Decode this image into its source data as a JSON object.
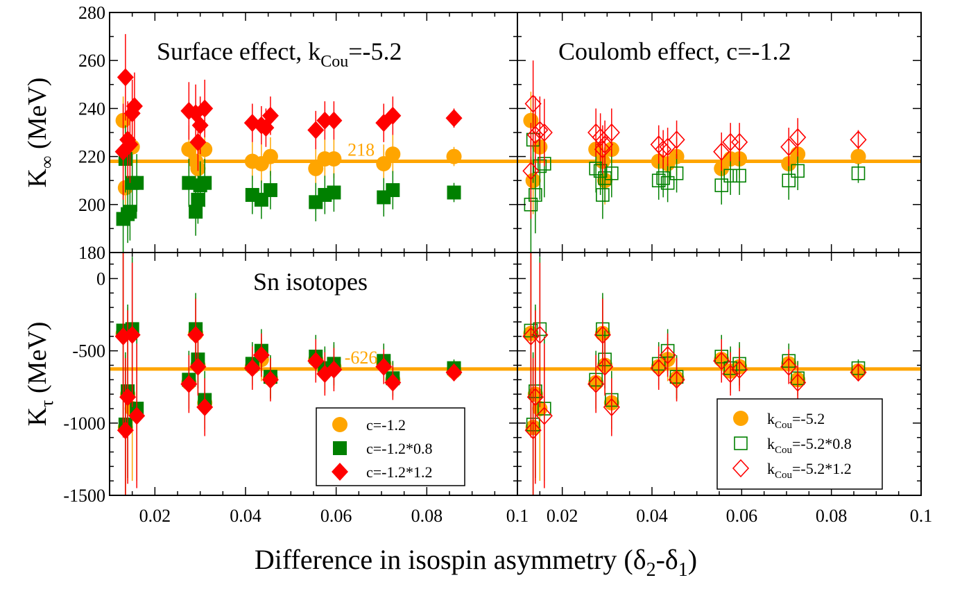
{
  "chart_data": {
    "type": "scatter",
    "xlabel_main": "Difference in isospin asymmetry (δ",
    "xlabel_sub2": "2",
    "xlabel_dash": "-δ",
    "xlabel_sub1": "1",
    "xlabel_close": ")",
    "xlim": [
      0.01,
      0.1
    ],
    "xticks": [
      "0.02",
      "0.04",
      "0.06",
      "0.08",
      "0.1"
    ],
    "colors": {
      "orange": "#ffa500",
      "green": "#008000",
      "red": "#ff0000",
      "line": "#ffa500"
    },
    "panels": [
      {
        "id": "top-left",
        "annotation": {
          "main": "Surface effect, k",
          "sub": "Cou",
          "tail": "=-5.2"
        },
        "ylabel": {
          "main": "K",
          "sub": "∞",
          "tail": " (MeV)"
        },
        "ylim": [
          180,
          280
        ],
        "yticks": [
          "180",
          "200",
          "220",
          "240",
          "260",
          "280"
        ],
        "reference": {
          "value": 218,
          "label": "218"
        },
        "series": [
          {
            "name": "c=-1.2",
            "marker": "circle-filled",
            "color": "orange",
            "x": [
              0.013,
              0.0135,
              0.015,
              0.0275,
              0.029,
              0.0295,
              0.031,
              0.0415,
              0.0435,
              0.0455,
              0.0555,
              0.0575,
              0.0595,
              0.0705,
              0.0725,
              0.086
            ],
            "y": [
              235,
              207,
              224,
              223,
              218,
              215,
              223,
              218,
              217,
              220,
              215,
              219,
              219,
              217,
              221,
              220
            ],
            "err": [
              10,
              12,
              12,
              10,
              10,
              10,
              10,
              8,
              8,
              8,
              8,
              8,
              8,
              8,
              8,
              4
            ]
          },
          {
            "name": "c=-1.2*0.8",
            "marker": "square-filled",
            "color": "green",
            "x": [
              0.013,
              0.0135,
              0.014,
              0.0145,
              0.015,
              0.016,
              0.0275,
              0.029,
              0.0295,
              0.03,
              0.031,
              0.0415,
              0.0435,
              0.0455,
              0.0555,
              0.0575,
              0.0595,
              0.0705,
              0.0725,
              0.086
            ],
            "y": [
              194,
              219,
              196,
              197,
              209,
              209,
              209,
              197,
              202,
              208,
              209,
              204,
              202,
              206,
              201,
              204,
              205,
              203,
              206,
              205
            ],
            "err": [
              14,
              14,
              12,
              12,
              12,
              12,
              10,
              10,
              10,
              10,
              10,
              8,
              8,
              8,
              8,
              8,
              8,
              8,
              8,
              4
            ]
          },
          {
            "name": "c=-1.2*1.2",
            "marker": "diamond-filled",
            "color": "red",
            "x": [
              0.013,
              0.0135,
              0.014,
              0.0145,
              0.015,
              0.0155,
              0.0275,
              0.029,
              0.0295,
              0.03,
              0.031,
              0.0415,
              0.0435,
              0.0445,
              0.0455,
              0.0555,
              0.0575,
              0.0595,
              0.0705,
              0.0725,
              0.086
            ],
            "y": [
              222,
              253,
              227,
              225,
              238,
              241,
              239,
              238,
              226,
              233,
              240,
              234,
              233,
              232,
              237,
              231,
              235,
              235,
              234,
              237,
              236
            ],
            "err": [
              20,
              18,
              16,
              16,
              14,
              14,
              12,
              12,
              12,
              12,
              12,
              8,
              8,
              8,
              8,
              8,
              8,
              8,
              8,
              8,
              4
            ]
          }
        ]
      },
      {
        "id": "top-right",
        "annotation": {
          "main": "Coulomb effect, c=-1.2",
          "sub": "",
          "tail": ""
        },
        "ylabel": null,
        "ylim": [
          180,
          280
        ],
        "yticks": [],
        "reference": {
          "value": 218,
          "label": ""
        },
        "series": [
          {
            "name": "k_Cou=-5.2",
            "marker": "circle-filled",
            "color": "orange",
            "x": [
              0.013,
              0.0135,
              0.015,
              0.0275,
              0.029,
              0.0295,
              0.031,
              0.0415,
              0.0435,
              0.0455,
              0.0555,
              0.0575,
              0.0595,
              0.0705,
              0.0725,
              0.086
            ],
            "y": [
              235,
              210,
              224,
              223,
              218,
              210,
              223,
              218,
              217,
              220,
              215,
              219,
              219,
              217,
              221,
              220
            ],
            "err": [
              12,
              14,
              12,
              10,
              10,
              10,
              10,
              8,
              8,
              8,
              8,
              8,
              8,
              8,
              8,
              4
            ]
          },
          {
            "name": "k_Cou=-5.2*0.8",
            "marker": "square-open",
            "color": "green",
            "x": [
              0.013,
              0.0135,
              0.014,
              0.015,
              0.016,
              0.0275,
              0.0285,
              0.029,
              0.0295,
              0.031,
              0.0415,
              0.0425,
              0.0435,
              0.0455,
              0.0555,
              0.0575,
              0.0595,
              0.0705,
              0.0725,
              0.086
            ],
            "y": [
              200,
              227,
              204,
              216,
              217,
              215,
              214,
              204,
              211,
              213,
              210,
              211,
              209,
              213,
              208,
              212,
              212,
              210,
              214,
              213
            ],
            "err": [
              20,
              18,
              16,
              14,
              14,
              10,
              10,
              10,
              10,
              10,
              8,
              8,
              8,
              8,
              8,
              8,
              8,
              8,
              8,
              4
            ]
          },
          {
            "name": "k_Cou=-5.2*1.2",
            "marker": "diamond-open",
            "color": "red",
            "x": [
              0.013,
              0.0135,
              0.014,
              0.015,
              0.016,
              0.0275,
              0.0285,
              0.029,
              0.0295,
              0.031,
              0.0415,
              0.0425,
              0.0435,
              0.0455,
              0.0555,
              0.0575,
              0.0595,
              0.0705,
              0.0725,
              0.086
            ],
            "y": [
              214,
              242,
              229,
              231,
              230,
              230,
              228,
              223,
              225,
              230,
              225,
              223,
              224,
              227,
              222,
              226,
              226,
              224,
              228,
              227
            ],
            "err": [
              20,
              18,
              16,
              14,
              14,
              10,
              10,
              10,
              10,
              10,
              8,
              8,
              8,
              8,
              8,
              8,
              8,
              8,
              8,
              4
            ]
          }
        ]
      },
      {
        "id": "bottom-left",
        "annotation": {
          "main": "Sn isotopes",
          "sub": "",
          "tail": ""
        },
        "ylabel": {
          "main": "K",
          "sub": "τ",
          "tail": " (MeV)"
        },
        "ylim": [
          -1500,
          180
        ],
        "yticks": [
          "-1500",
          "-1000",
          "-500",
          "0"
        ],
        "reference": {
          "value": -626,
          "label": "-626"
        },
        "series": [
          {
            "name": "c=-1.2",
            "marker": "circle-filled",
            "color": "orange",
            "x": [
              0.013,
              0.0135,
              0.014,
              0.015,
              0.0275,
              0.029,
              0.0295,
              0.031,
              0.0415,
              0.0435,
              0.0455,
              0.0555,
              0.0575,
              0.0595,
              0.0705,
              0.0725,
              0.086
            ],
            "y": [
              -380,
              -1030,
              -800,
              -900,
              -720,
              -380,
              -600,
              -860,
              -610,
              -560,
              -690,
              -560,
              -640,
              -610,
              -590,
              -700,
              -640
            ],
            "err": [
              700,
              500,
              600,
              500,
              200,
              250,
              200,
              200,
              150,
              150,
              150,
              150,
              150,
              150,
              120,
              120,
              60
            ]
          },
          {
            "name": "c=-1.2*0.8",
            "marker": "square-filled",
            "color": "green",
            "x": [
              0.013,
              0.0135,
              0.014,
              0.015,
              0.016,
              0.0275,
              0.029,
              0.0295,
              0.031,
              0.0415,
              0.0435,
              0.0455,
              0.0555,
              0.0575,
              0.0595,
              0.0705,
              0.0725,
              0.086
            ],
            "y": [
              -360,
              -1010,
              -780,
              -350,
              -900,
              -700,
              -350,
              -560,
              -840,
              -590,
              -500,
              -680,
              -540,
              -620,
              -590,
              -570,
              -690,
              -620
            ],
            "err": [
              700,
              500,
              600,
              500,
              500,
              200,
              250,
              200,
              200,
              150,
              150,
              150,
              150,
              150,
              150,
              120,
              120,
              60
            ]
          },
          {
            "name": "c=-1.2*1.2",
            "marker": "diamond-filled",
            "color": "red",
            "x": [
              0.013,
              0.0135,
              0.014,
              0.015,
              0.016,
              0.0275,
              0.029,
              0.0295,
              0.031,
              0.0415,
              0.0435,
              0.0455,
              0.0555,
              0.0575,
              0.0595,
              0.0705,
              0.0725,
              0.086
            ],
            "y": [
              -400,
              -1050,
              -820,
              -390,
              -950,
              -730,
              -390,
              -610,
              -890,
              -620,
              -530,
              -700,
              -570,
              -660,
              -630,
              -610,
              -720,
              -650
            ],
            "err": [
              700,
              500,
              600,
              500,
              500,
              200,
              250,
              200,
              200,
              150,
              150,
              150,
              150,
              150,
              150,
              120,
              120,
              60
            ]
          }
        ],
        "legend": {
          "entries": [
            {
              "marker": "circle-filled",
              "color": "orange",
              "label": "c=-1.2"
            },
            {
              "marker": "square-filled",
              "color": "green",
              "label": "c=-1.2*0.8"
            },
            {
              "marker": "diamond-filled",
              "color": "red",
              "label": "c=-1.2*1.2"
            }
          ]
        }
      },
      {
        "id": "bottom-right",
        "annotation": {
          "main": "",
          "sub": "",
          "tail": ""
        },
        "ylabel": null,
        "ylim": [
          -1500,
          180
        ],
        "yticks": [],
        "reference": {
          "value": -626,
          "label": ""
        },
        "series": [
          {
            "name": "k_Cou=-5.2",
            "marker": "circle-filled",
            "color": "orange",
            "x": [
              0.013,
              0.0135,
              0.014,
              0.015,
              0.0275,
              0.029,
              0.0295,
              0.031,
              0.0415,
              0.0435,
              0.0455,
              0.0555,
              0.0575,
              0.0595,
              0.0705,
              0.0725,
              0.086
            ],
            "y": [
              -380,
              -1030,
              -800,
              -900,
              -720,
              -380,
              -600,
              -860,
              -610,
              -560,
              -690,
              -560,
              -640,
              -610,
              -590,
              -700,
              -640
            ],
            "err": [
              700,
              500,
              600,
              500,
              200,
              250,
              200,
              200,
              150,
              150,
              150,
              150,
              150,
              150,
              120,
              120,
              60
            ]
          },
          {
            "name": "k_Cou=-5.2*0.8",
            "marker": "square-open",
            "color": "green",
            "x": [
              0.013,
              0.0135,
              0.014,
              0.015,
              0.016,
              0.0275,
              0.029,
              0.0295,
              0.031,
              0.0415,
              0.0435,
              0.0455,
              0.0555,
              0.0575,
              0.0595,
              0.0705,
              0.0725,
              0.086
            ],
            "y": [
              -360,
              -1010,
              -780,
              -350,
              -900,
              -700,
              -350,
              -560,
              -840,
              -590,
              -500,
              -680,
              -540,
              -620,
              -590,
              -570,
              -690,
              -620
            ],
            "err": [
              700,
              500,
              600,
              500,
              500,
              200,
              250,
              200,
              200,
              150,
              150,
              150,
              150,
              150,
              150,
              120,
              120,
              60
            ]
          },
          {
            "name": "k_Cou=-5.2*1.2",
            "marker": "diamond-open",
            "color": "red",
            "x": [
              0.013,
              0.0135,
              0.014,
              0.015,
              0.016,
              0.0275,
              0.029,
              0.0295,
              0.031,
              0.0415,
              0.0435,
              0.0455,
              0.0555,
              0.0575,
              0.0595,
              0.0705,
              0.0725,
              0.086
            ],
            "y": [
              -400,
              -1050,
              -820,
              -390,
              -950,
              -730,
              -390,
              -610,
              -890,
              -620,
              -530,
              -700,
              -570,
              -660,
              -630,
              -610,
              -720,
              -650
            ],
            "err": [
              700,
              500,
              600,
              500,
              500,
              200,
              250,
              200,
              200,
              150,
              150,
              150,
              150,
              150,
              150,
              120,
              120,
              60
            ]
          }
        ],
        "legend": {
          "entries": [
            {
              "marker": "circle-filled",
              "color": "orange",
              "label_main": "k",
              "label_sub": "Cou",
              "label_tail": "=-5.2"
            },
            {
              "marker": "square-open",
              "color": "green",
              "label_main": "k",
              "label_sub": "Cou",
              "label_tail": "=-5.2*0.8"
            },
            {
              "marker": "diamond-open",
              "color": "red",
              "label_main": "k",
              "label_sub": "Cou",
              "label_tail": "=-5.2*1.2"
            }
          ]
        }
      }
    ]
  }
}
